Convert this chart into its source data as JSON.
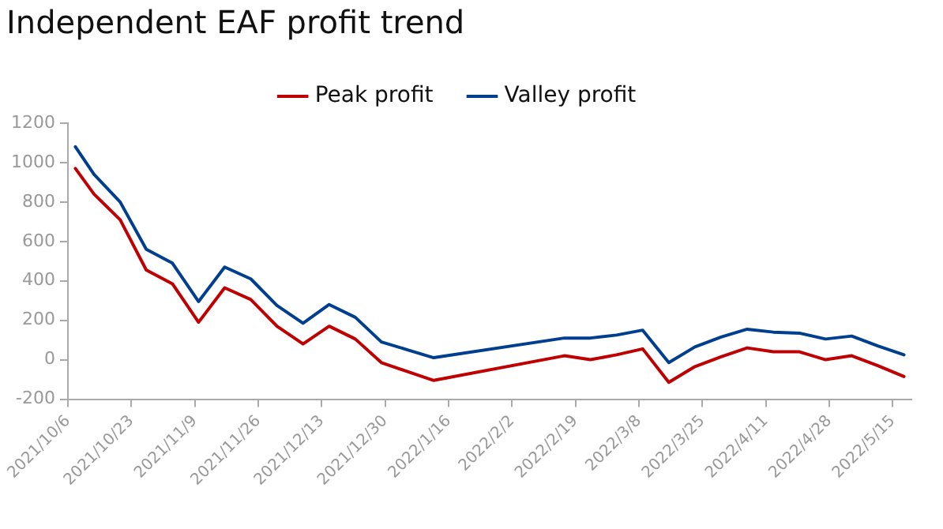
{
  "chart_data": {
    "type": "line",
    "title": "Independent EAF profit trend",
    "x": [
      "2021-10-08",
      "2021-10-13",
      "2021-10-20",
      "2021-10-27",
      "2021-11-03",
      "2021-11-10",
      "2021-11-17",
      "2021-11-24",
      "2021-12-01",
      "2021-12-08",
      "2021-12-15",
      "2021-12-22",
      "2021-12-29",
      "2022-01-05",
      "2022-01-12",
      "2022-02-16",
      "2022-02-23",
      "2022-03-02",
      "2022-03-09",
      "2022-03-16",
      "2022-03-23",
      "2022-03-30",
      "2022-04-06",
      "2022-04-13",
      "2022-04-20",
      "2022-04-27",
      "2022-05-04",
      "2022-05-11",
      "2022-05-18"
    ],
    "series": [
      {
        "name": "Peak profit",
        "color": "#c00000",
        "values": [
          970,
          840,
          710,
          455,
          385,
          190,
          365,
          305,
          170,
          80,
          170,
          105,
          -15,
          -60,
          -105,
          20,
          0,
          25,
          55,
          -115,
          -35,
          15,
          60,
          40,
          40,
          0,
          20,
          -30,
          -85
        ]
      },
      {
        "name": "Valley profit",
        "color": "#003f8f",
        "values": [
          1080,
          940,
          800,
          560,
          490,
          295,
          470,
          410,
          275,
          185,
          280,
          215,
          90,
          50,
          10,
          110,
          110,
          125,
          150,
          -15,
          65,
          115,
          155,
          140,
          135,
          105,
          120,
          70,
          25
        ]
      }
    ],
    "xlim": [
      "2021-10-06",
      "2022-05-20"
    ],
    "xticks": [
      {
        "value": "2021-10-06",
        "label": "2021/10/6"
      },
      {
        "value": "2021-10-23",
        "label": "2021/10/23"
      },
      {
        "value": "2021-11-09",
        "label": "2021/11/9"
      },
      {
        "value": "2021-11-26",
        "label": "2021/11/26"
      },
      {
        "value": "2021-12-13",
        "label": "2021/12/13"
      },
      {
        "value": "2021-12-30",
        "label": "2021/12/30"
      },
      {
        "value": "2022-01-16",
        "label": "2022/1/16"
      },
      {
        "value": "2022-02-02",
        "label": "2022/2/2"
      },
      {
        "value": "2022-02-19",
        "label": "2022/2/19"
      },
      {
        "value": "2022-03-08",
        "label": "2022/3/8"
      },
      {
        "value": "2022-03-25",
        "label": "2022/3/25"
      },
      {
        "value": "2022-04-11",
        "label": "2022/4/11"
      },
      {
        "value": "2022-04-28",
        "label": "2022/4/28"
      },
      {
        "value": "2022-05-15",
        "label": "2022/5/15"
      }
    ],
    "ylim": [
      -200,
      1200
    ],
    "yticks": [
      -200,
      0,
      200,
      400,
      600,
      800,
      1000,
      1200
    ],
    "grid": false,
    "legend": "top",
    "marker": "none",
    "line_style": "solid"
  }
}
